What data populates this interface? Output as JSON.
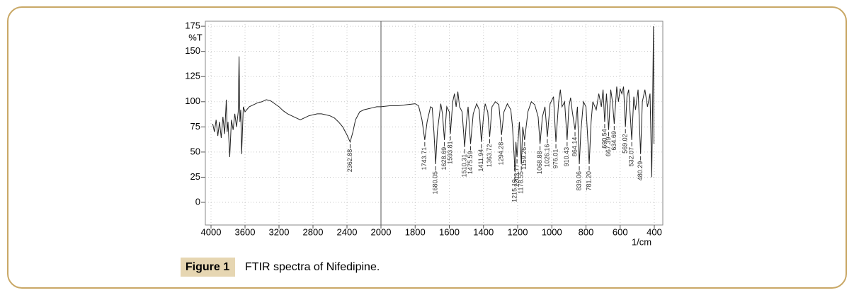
{
  "chart_data": {
    "type": "line",
    "ylabel": "%T",
    "xlabel": "1/cm",
    "xlim": [
      4000,
      400
    ],
    "x_scale_change": 2000,
    "xticks": [
      4000,
      3600,
      3200,
      2800,
      2400,
      2000,
      1800,
      1600,
      1400,
      1200,
      1000,
      800,
      600,
      400
    ],
    "ylim": [
      -22.5,
      180
    ],
    "yticks": [
      0,
      25,
      50,
      75,
      100,
      125,
      150,
      175
    ],
    "grid": true,
    "series": [
      {
        "color": "#222222",
        "x": [
          3980,
          3960,
          3940,
          3920,
          3900,
          3880,
          3860,
          3840,
          3820,
          3810,
          3800,
          3780,
          3760,
          3740,
          3720,
          3700,
          3680,
          3670,
          3660,
          3650,
          3640,
          3620,
          3600,
          3550,
          3500,
          3450,
          3400,
          3350,
          3300,
          3250,
          3200,
          3150,
          3100,
          3050,
          3000,
          2950,
          2900,
          2850,
          2800,
          2750,
          2700,
          2650,
          2600,
          2550,
          2500,
          2450,
          2400,
          2362.88,
          2330,
          2300,
          2250,
          2200,
          2150,
          2100,
          2050,
          2000,
          1950,
          1900,
          1850,
          1800,
          1780,
          1760,
          1743.71,
          1730,
          1710,
          1700,
          1690,
          1680.05,
          1670,
          1650,
          1640,
          1628.69,
          1615,
          1600,
          1593.81,
          1580,
          1570,
          1560,
          1550,
          1540,
          1525,
          1510.31,
          1500,
          1490,
          1475.59,
          1460,
          1440,
          1425,
          1411.94,
          1400,
          1390,
          1375,
          1363.72,
          1350,
          1330,
          1310,
          1294.28,
          1280,
          1260,
          1240,
          1230,
          1215.19,
          1210,
          1203.77,
          1190,
          1178.55,
          1170,
          1159.26,
          1140,
          1120,
          1100,
          1080,
          1068.88,
          1055,
          1040,
          1026.16,
          1010,
          990,
          976.01,
          960,
          950,
          940,
          925,
          910.43,
          900,
          890,
          880,
          864.14,
          850,
          839.06,
          830,
          815,
          800,
          781.2,
          770,
          760,
          740,
          725,
          710,
          700,
          690.54,
          680,
          667.39,
          655,
          645,
          634.69,
          620,
          610,
          600,
          590,
          580,
          569.02,
          560,
          550,
          532.07,
          520,
          510,
          495,
          480.29,
          470,
          455,
          440,
          425,
          415,
          410,
          405,
          402
        ],
        "values": [
          78,
          70,
          82,
          66,
          80,
          64,
          85,
          68,
          102,
          70,
          80,
          45,
          82,
          72,
          88,
          75,
          90,
          145,
          80,
          92,
          48,
          95,
          90,
          95,
          97,
          99,
          100,
          102,
          101,
          98,
          95,
          91,
          88,
          86,
          84,
          82,
          84,
          86,
          87,
          88,
          88,
          87,
          86,
          84,
          80,
          75,
          67,
          60,
          70,
          82,
          90,
          92,
          93,
          94,
          95,
          95,
          96,
          96,
          97,
          98,
          96,
          82,
          62,
          80,
          95,
          94,
          70,
          38,
          70,
          98,
          88,
          62,
          95,
          90,
          68,
          100,
          108,
          95,
          110,
          95,
          90,
          55,
          80,
          95,
          58,
          88,
          98,
          92,
          60,
          85,
          98,
          90,
          65,
          95,
          100,
          97,
          67,
          90,
          98,
          92,
          75,
          30,
          60,
          45,
          80,
          38,
          75,
          62,
          90,
          100,
          97,
          85,
          58,
          85,
          95,
          65,
          98,
          105,
          60,
          100,
          112,
          95,
          100,
          62,
          95,
          104,
          90,
          72,
          95,
          38,
          70,
          100,
          95,
          38,
          80,
          100,
          92,
          108,
          95,
          112,
          80,
          108,
          72,
          112,
          100,
          78,
          115,
          100,
          113,
          108,
          115,
          75,
          105,
          112,
          62,
          105,
          92,
          112,
          48,
          100,
          112,
          95,
          108,
          25,
          95,
          175,
          58
        ]
      }
    ],
    "peaks": [
      2362.88,
      1743.71,
      1680.05,
      1628.69,
      1593.81,
      1510.31,
      1475.59,
      1411.94,
      1363.72,
      1294.28,
      1215.19,
      1203.77,
      1178.55,
      1159.26,
      1068.88,
      1026.16,
      976.01,
      910.43,
      864.14,
      839.06,
      {
        "value": 781.2,
        "label": "781.20"
      },
      690.54,
      667.39,
      634.69,
      569.02,
      532.07,
      480.29
    ]
  },
  "caption": {
    "label": "Figure 1",
    "text": "FTIR spectra of Nifedipine."
  }
}
